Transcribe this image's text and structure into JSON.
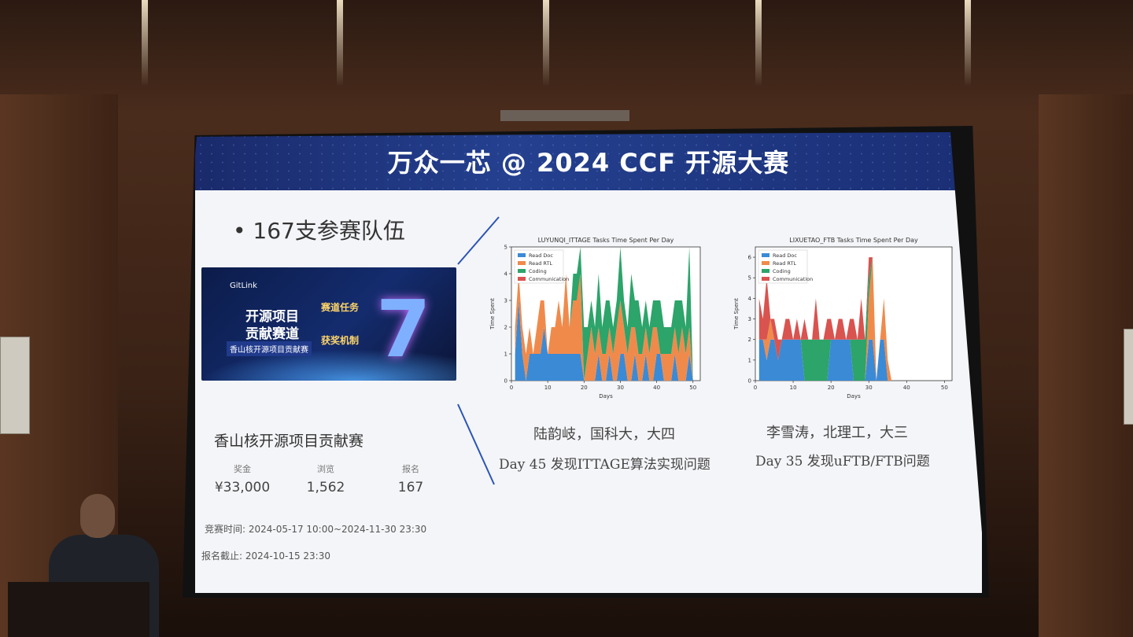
{
  "slide": {
    "title": "万众一芯 @ 2024 CCF 开源大赛",
    "bullet": "• 167支参赛队伍",
    "banner": {
      "line1": "开源项目",
      "line2": "贡献赛道",
      "line3": "香山核开源项目贡献赛",
      "tag1": "赛道任务",
      "tag2": "获奖机制",
      "brand": "GitLink",
      "number": "7"
    },
    "contest_name": "香山核开源项目贡献赛",
    "stats": [
      {
        "label": "奖金",
        "value": "¥33,000"
      },
      {
        "label": "浏览",
        "value": "1,562"
      },
      {
        "label": "报名",
        "value": "167"
      }
    ],
    "time_label": "竞赛时间: 2024-05-17 10:00~2024-11-30 23:30",
    "deadline_label": "报名截止: 2024-10-15 23:30",
    "left_caption1": "陆韵岐，国科大，大四",
    "left_caption2": "Day 45 发现ITTAGE算法实现问题",
    "right_caption1": "李雪涛，北理工，大三",
    "right_caption2": "Day 35 发现uFTB/FTB问题"
  },
  "chart_data": [
    {
      "type": "area",
      "title": "LUYUNQI_ITTAGE Tasks Time Spent Per Day",
      "xlabel": "Days",
      "ylabel": "Time Spent",
      "xlim": [
        0,
        52
      ],
      "ylim": [
        0,
        5
      ],
      "xticks": [
        0,
        10,
        20,
        30,
        40,
        50
      ],
      "yticks": [
        0,
        1,
        2,
        3,
        4,
        5
      ],
      "legend": "top-left",
      "colors": {
        "Read Doc": "#3b8ad6",
        "Read RTL": "#f08a4b",
        "Coding": "#2ca46a",
        "Communication": "#d9534f"
      },
      "series_names": [
        "Read Doc",
        "Read RTL",
        "Coding",
        "Communication"
      ],
      "x": [
        1,
        2,
        3,
        4,
        5,
        6,
        7,
        8,
        9,
        10,
        11,
        12,
        13,
        14,
        15,
        16,
        17,
        18,
        19,
        20,
        21,
        22,
        23,
        24,
        25,
        26,
        27,
        28,
        29,
        30,
        31,
        32,
        33,
        34,
        35,
        36,
        37,
        38,
        39,
        40,
        41,
        42,
        43,
        44,
        45,
        46,
        47,
        48,
        49,
        50
      ],
      "series": [
        {
          "name": "Read Doc",
          "values": [
            1,
            3,
            1,
            0,
            1,
            1,
            1,
            1,
            2,
            1,
            1,
            1,
            1,
            1,
            1,
            1,
            1,
            1,
            1,
            0,
            0,
            0,
            0,
            1,
            0,
            0,
            1,
            0,
            0,
            1,
            1,
            0,
            0,
            1,
            0,
            0,
            1,
            0,
            0,
            1,
            1,
            0,
            0,
            0,
            1,
            0,
            0,
            0,
            1,
            0
          ]
        },
        {
          "name": "Read RTL",
          "values": [
            1,
            1,
            1,
            1,
            1,
            0,
            1,
            2,
            1,
            0,
            1,
            1,
            2,
            1,
            3,
            1,
            2,
            2,
            3,
            0,
            1,
            2,
            1,
            1,
            1,
            1,
            1,
            1,
            2,
            2,
            1,
            1,
            2,
            1,
            1,
            1,
            1,
            1,
            2,
            1,
            0,
            1,
            1,
            1,
            1,
            1,
            2,
            1,
            1,
            0
          ]
        },
        {
          "name": "Coding",
          "values": [
            0,
            0,
            0,
            0,
            0,
            0,
            0,
            0,
            0,
            0,
            0,
            0,
            0,
            0,
            0,
            0,
            1,
            1,
            1,
            2,
            1,
            1,
            1,
            2,
            1,
            2,
            1,
            1,
            1,
            2,
            1,
            1,
            2,
            1,
            2,
            1,
            1,
            1,
            1,
            1,
            2,
            1,
            1,
            1,
            1,
            2,
            1,
            1,
            3,
            0
          ]
        },
        {
          "name": "Communication",
          "values": [
            0,
            0,
            0,
            0,
            0,
            0,
            0,
            0,
            0,
            0,
            0,
            0,
            0,
            0,
            0,
            0,
            0,
            0,
            0,
            0,
            0,
            0,
            0,
            0,
            0,
            0,
            0,
            0,
            0,
            0,
            0,
            0,
            0,
            0,
            0,
            0,
            0,
            0,
            0,
            0,
            0,
            0,
            0,
            0,
            0,
            0,
            0,
            0,
            0,
            0
          ]
        }
      ]
    },
    {
      "type": "area",
      "title": "LIXUETAO_FTB Tasks Time Spent Per Day",
      "xlabel": "Days",
      "ylabel": "Time Spent",
      "xlim": [
        0,
        52
      ],
      "ylim": [
        0,
        6.5
      ],
      "xticks": [
        0,
        10,
        20,
        30,
        40,
        50
      ],
      "yticks": [
        0,
        1,
        2,
        3,
        4,
        5,
        6
      ],
      "legend": "top-left",
      "colors": {
        "Read Doc": "#3b8ad6",
        "Read RTL": "#f08a4b",
        "Coding": "#2ca46a",
        "Communication": "#d9534f"
      },
      "series_names": [
        "Read Doc",
        "Read RTL",
        "Coding",
        "Communication"
      ],
      "x": [
        1,
        2,
        3,
        4,
        5,
        6,
        7,
        8,
        9,
        10,
        11,
        12,
        13,
        14,
        15,
        16,
        17,
        18,
        19,
        20,
        21,
        22,
        23,
        24,
        25,
        26,
        27,
        28,
        29,
        30,
        31,
        32,
        33,
        34,
        35,
        36
      ],
      "series": [
        {
          "name": "Read Doc",
          "values": [
            2,
            2,
            1,
            2,
            2,
            1,
            2,
            2,
            2,
            2,
            2,
            2,
            0,
            0,
            0,
            0,
            0,
            0,
            0,
            2,
            2,
            2,
            2,
            2,
            2,
            0,
            0,
            0,
            0,
            2,
            2,
            0,
            2,
            2,
            0,
            0
          ]
        },
        {
          "name": "Read RTL",
          "values": [
            0,
            0,
            1,
            1,
            0,
            0,
            0,
            0,
            0,
            0,
            0,
            0,
            0,
            0,
            0,
            0,
            0,
            0,
            0,
            0,
            0,
            0,
            0,
            0,
            0,
            0,
            0,
            0,
            0,
            2,
            4,
            0,
            0,
            2,
            1,
            0
          ]
        },
        {
          "name": "Coding",
          "values": [
            0,
            0,
            0,
            0,
            0,
            0,
            0,
            0,
            0,
            0,
            0,
            0,
            2,
            2,
            2,
            2,
            2,
            2,
            2,
            0,
            0,
            0,
            0,
            0,
            0,
            2,
            2,
            2,
            2,
            1,
            0,
            0,
            0,
            0,
            0,
            0
          ]
        },
        {
          "name": "Communication",
          "values": [
            2,
            1,
            3,
            0,
            1,
            1,
            0,
            1,
            1,
            0,
            1,
            0,
            1,
            0,
            0,
            2,
            0,
            0,
            1,
            1,
            0,
            1,
            1,
            0,
            1,
            1,
            0,
            2,
            0,
            1,
            0,
            0,
            0,
            0,
            0,
            0
          ]
        }
      ]
    }
  ]
}
